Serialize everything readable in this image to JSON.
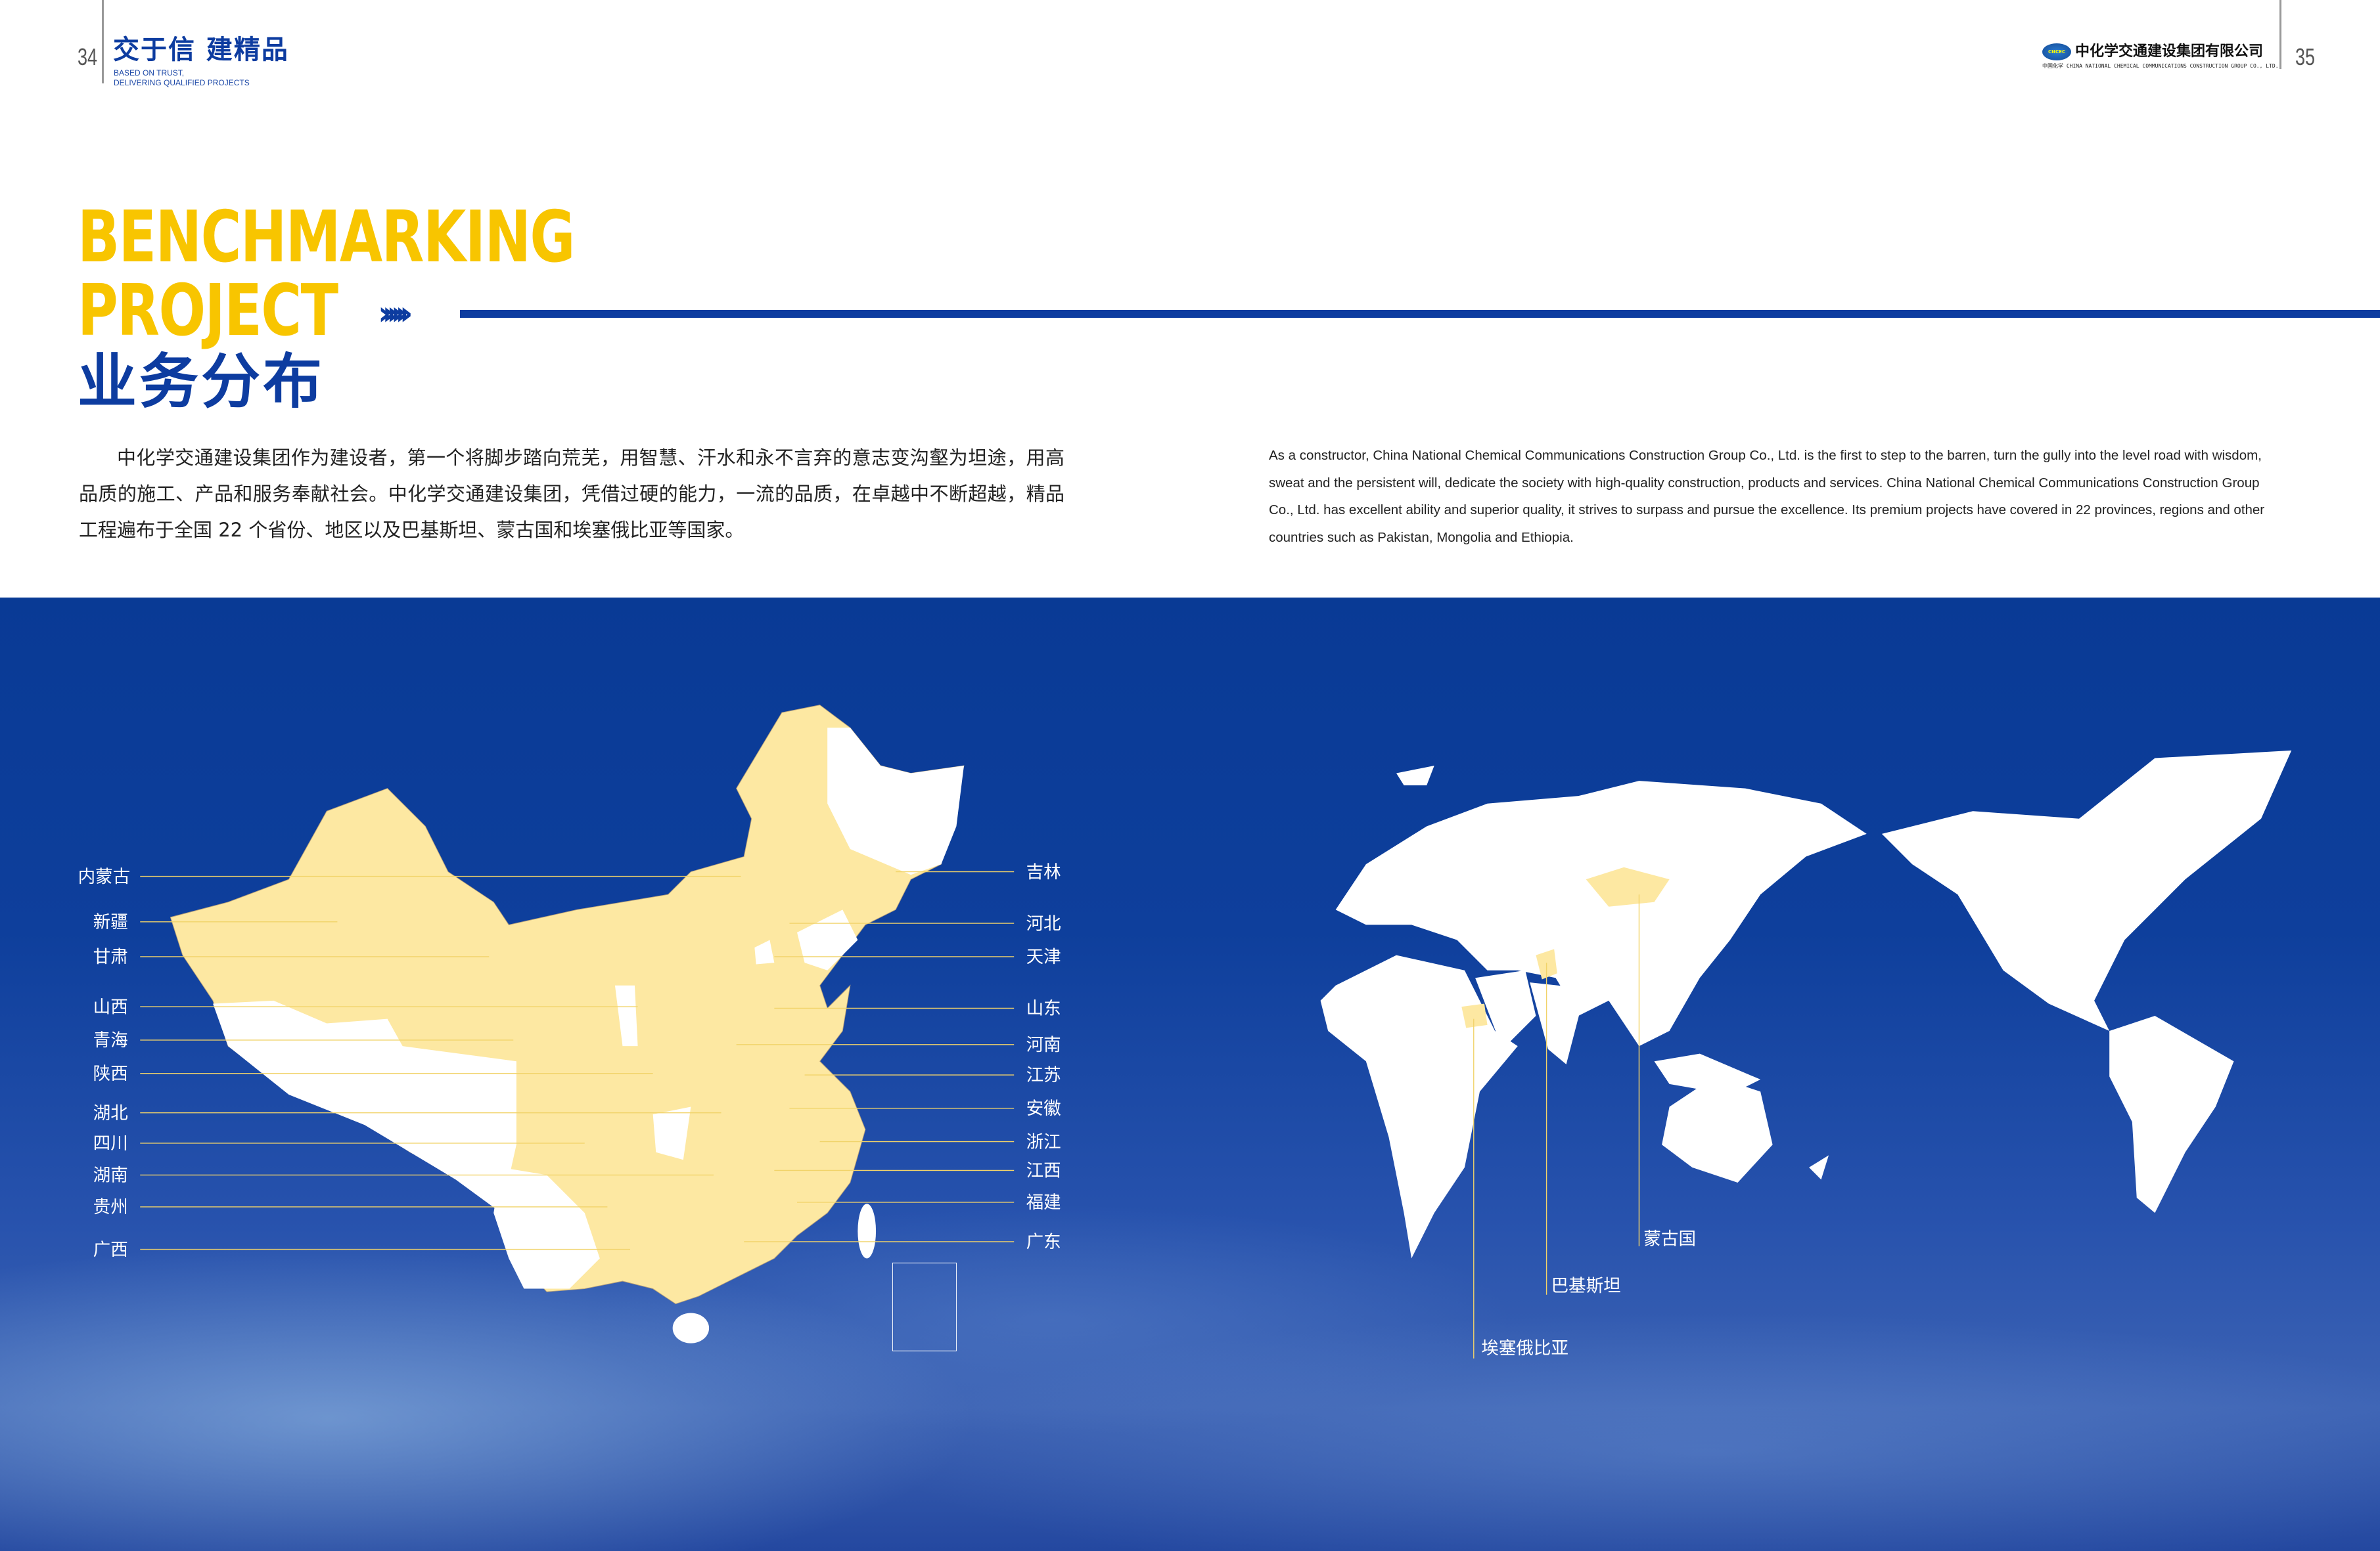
{
  "header": {
    "page_left": "34",
    "page_right": "35",
    "slogan_cn": "交于信 建精品",
    "slogan_en_line1": "BASED ON TRUST,",
    "slogan_en_line2": "DELIVERING QUALIFIED PROJECTS",
    "logo_badge": "CNCEC",
    "logo_cn": "中化学交通建设集团有限公司",
    "logo_sub": "中国化学 CHINA NATIONAL CHEMICAL COMMUNICATIONS CONSTRUCTION GROUP CO., LTD."
  },
  "title": {
    "line1": "BENCHMARKING",
    "line2": "PROJECT",
    "arrows": "››››››",
    "cn": "业务分布"
  },
  "intro": {
    "cn": "中化学交通建设集团作为建设者，第一个将脚步踏向荒芜，用智慧、汗水和永不言弃的意志变沟壑为坦途，用高品质的施工、产品和服务奉献社会。中化学交通建设集团，凭借过硬的能力，一流的品质，在卓越中不断超越，精品工程遍布于全国 22 个省份、地区以及巴基斯坦、蒙古国和埃塞俄比亚等国家。",
    "en": "As a constructor, China National Chemical Communications Construction Group Co., Ltd. is the first to step to the barren, turn the gully into the level road with wisdom, sweat and the persistent will, dedicate the society with high-quality construction, products and services. China National Chemical Communications Construction Group Co., Ltd. has excellent ability and superior quality, it strives to surpass and pursue the excellence. Its premium projects have covered in 22 provinces, regions and other countries such as Pakistan, Mongolia and Ethiopia."
  },
  "china_map": {
    "highlight_color": "#fde8a2",
    "left_labels": [
      "内蒙古",
      "新疆",
      "甘肃",
      "山西",
      "青海",
      "陕西",
      "湖北",
      "四川",
      "湖南",
      "贵州",
      "广西"
    ],
    "right_labels": [
      "吉林",
      "河北",
      "天津",
      "山东",
      "河南",
      "江苏",
      "安徽",
      "浙江",
      "江西",
      "福建",
      "广东"
    ]
  },
  "world_map": {
    "highlight_color": "#fde8a2",
    "labels": [
      "蒙古国",
      "巴基斯坦",
      "埃塞俄比亚"
    ]
  },
  "colors": {
    "accent_yellow": "#f8c500",
    "brand_blue": "#0d3ca0"
  }
}
